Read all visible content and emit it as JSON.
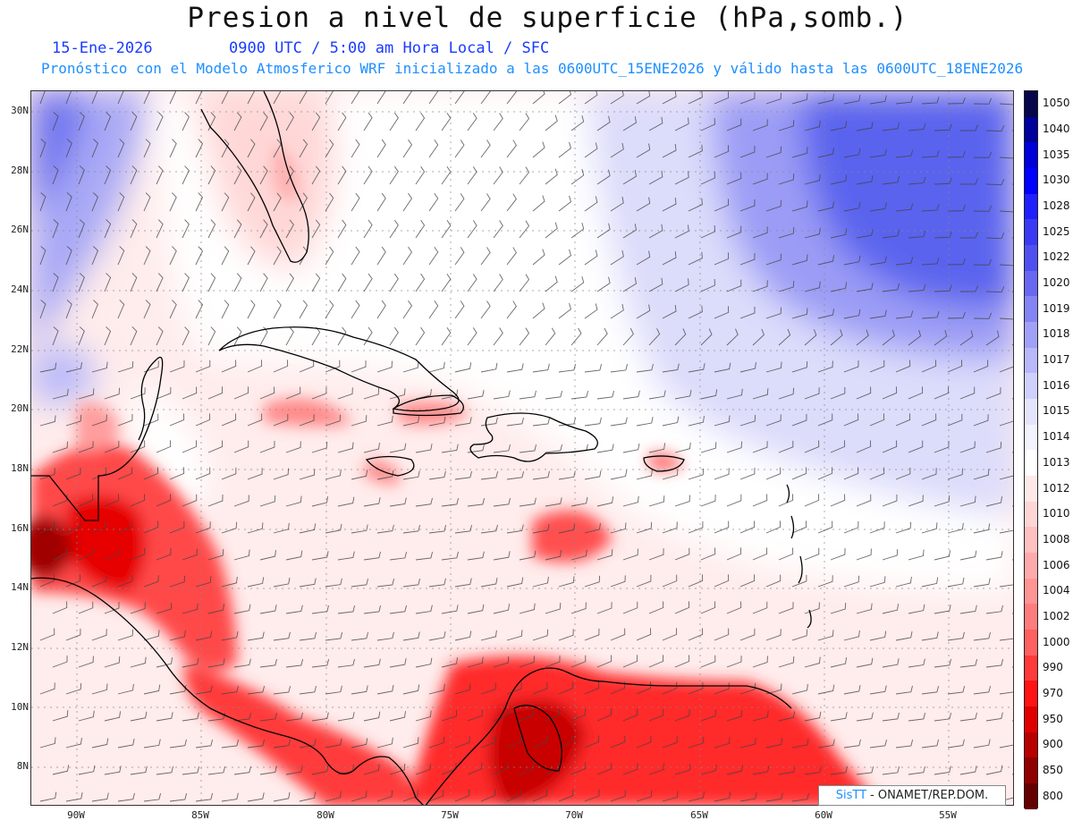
{
  "header": {
    "title": "Presion a nivel de superficie (hPa,somb.)",
    "date": "15-Ene-2026",
    "time_info": "0900 UTC / 5:00 am Hora Local / SFC",
    "model_info": "Pronóstico con el Modelo Atmosferico WRF inicializado a las 0600UTC_15ENE2026 y válido hasta las  0600UTC_18ENE2026"
  },
  "map": {
    "lat_labels": [
      "30N",
      "28N",
      "26N",
      "24N",
      "22N",
      "20N",
      "18N",
      "16N",
      "14N",
      "12N",
      "10N",
      "8N"
    ],
    "lon_labels": [
      "90W",
      "85W",
      "80W",
      "75W",
      "70W",
      "65W",
      "60W",
      "55W"
    ],
    "colors": {
      "high": "#4a57ea",
      "neutral": "#ffffff",
      "low": "#e5121c",
      "land_outline": "#000000"
    }
  },
  "colorbar": {
    "levels": [
      "1050",
      "1040",
      "1035",
      "1030",
      "1028",
      "1025",
      "1022",
      "1020",
      "1019",
      "1018",
      "1017",
      "1016",
      "1015",
      "1014",
      "1013",
      "1012",
      "1010",
      "1008",
      "1006",
      "1004",
      "1002",
      "1000",
      "990",
      "970",
      "950",
      "900",
      "850",
      "800"
    ],
    "colors": [
      "#06064a",
      "#00009a",
      "#0000d8",
      "#0000ff",
      "#2020ff",
      "#3a3af5",
      "#5050f0",
      "#6868f2",
      "#8484f5",
      "#a0a0f7",
      "#b8b8fa",
      "#d0d0fc",
      "#e4e4fd",
      "#f3f3fe",
      "#ffffff",
      "#ffe8e8",
      "#ffd6d6",
      "#ffc0c0",
      "#ffaaaa",
      "#ff9494",
      "#ff7c7c",
      "#ff6060",
      "#ff3a3a",
      "#ff1414",
      "#e00000",
      "#b80000",
      "#900000",
      "#650000"
    ]
  },
  "credit": {
    "logo": "SisTT",
    "text": "- ONAMET/REP.DOM."
  }
}
